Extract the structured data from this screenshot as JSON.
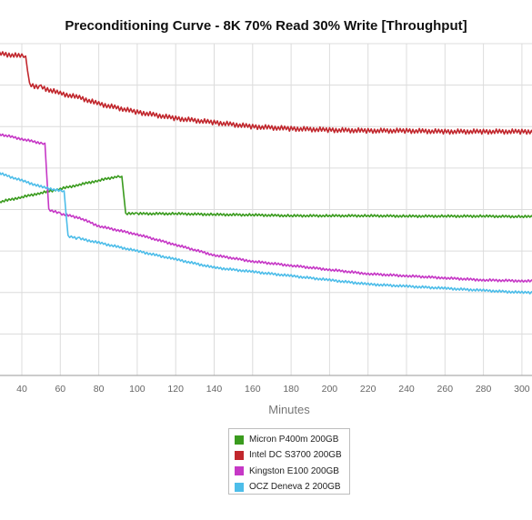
{
  "chart_data": {
    "type": "line",
    "title": "Preconditioning Curve - 8K 70% Read 30% Write [Throughput]",
    "xlabel": "Minutes",
    "ylabel": "",
    "xlim": [
      20,
      310
    ],
    "ylim": [
      0,
      8
    ],
    "grid": true,
    "legend_position": "bottom",
    "xticks": [
      40,
      60,
      80,
      100,
      120,
      140,
      160,
      180,
      200,
      220,
      240,
      260,
      280,
      300
    ],
    "series": [
      {
        "name": "Micron P400m 200GB",
        "color": "#3a9b1e",
        "x": [
          20,
          30,
          40,
          50,
          60,
          70,
          80,
          90,
          92,
          94,
          100,
          120,
          140,
          160,
          180,
          200,
          220,
          240,
          260,
          280,
          300,
          310
        ],
        "y": [
          4.1,
          4.2,
          4.3,
          4.4,
          4.5,
          4.6,
          4.7,
          4.8,
          4.8,
          3.9,
          3.9,
          3.9,
          3.88,
          3.87,
          3.85,
          3.85,
          3.85,
          3.84,
          3.84,
          3.84,
          3.83,
          3.83
        ]
      },
      {
        "name": "Intel DC S3700 200GB",
        "color": "#c1272d",
        "x": [
          20,
          30,
          40,
          42,
          44,
          50,
          60,
          70,
          80,
          100,
          120,
          140,
          160,
          180,
          200,
          220,
          240,
          260,
          280,
          300,
          310
        ],
        "y": [
          7.8,
          7.75,
          7.7,
          7.7,
          7.0,
          6.95,
          6.8,
          6.7,
          6.55,
          6.35,
          6.2,
          6.1,
          6.0,
          5.95,
          5.92,
          5.9,
          5.9,
          5.88,
          5.88,
          5.88,
          5.88
        ]
      },
      {
        "name": "Kingston E100 200GB",
        "color": "#c638c6",
        "x": [
          20,
          30,
          40,
          50,
          52,
          54,
          60,
          70,
          80,
          100,
          120,
          140,
          160,
          180,
          200,
          220,
          240,
          260,
          280,
          300,
          310
        ],
        "y": [
          5.9,
          5.8,
          5.7,
          5.6,
          5.6,
          4.0,
          3.9,
          3.8,
          3.6,
          3.4,
          3.15,
          2.9,
          2.75,
          2.65,
          2.55,
          2.45,
          2.4,
          2.35,
          2.3,
          2.28,
          2.27
        ]
      },
      {
        "name": "OCZ Deneva 2 200GB",
        "color": "#4dbde9",
        "x": [
          20,
          30,
          40,
          50,
          60,
          62,
          64,
          70,
          80,
          100,
          120,
          140,
          160,
          180,
          200,
          220,
          240,
          260,
          280,
          300,
          310
        ],
        "y": [
          5.0,
          4.85,
          4.7,
          4.55,
          4.45,
          4.45,
          3.35,
          3.3,
          3.2,
          3.0,
          2.8,
          2.6,
          2.5,
          2.4,
          2.3,
          2.2,
          2.15,
          2.1,
          2.05,
          2.0,
          2.0
        ]
      }
    ]
  }
}
